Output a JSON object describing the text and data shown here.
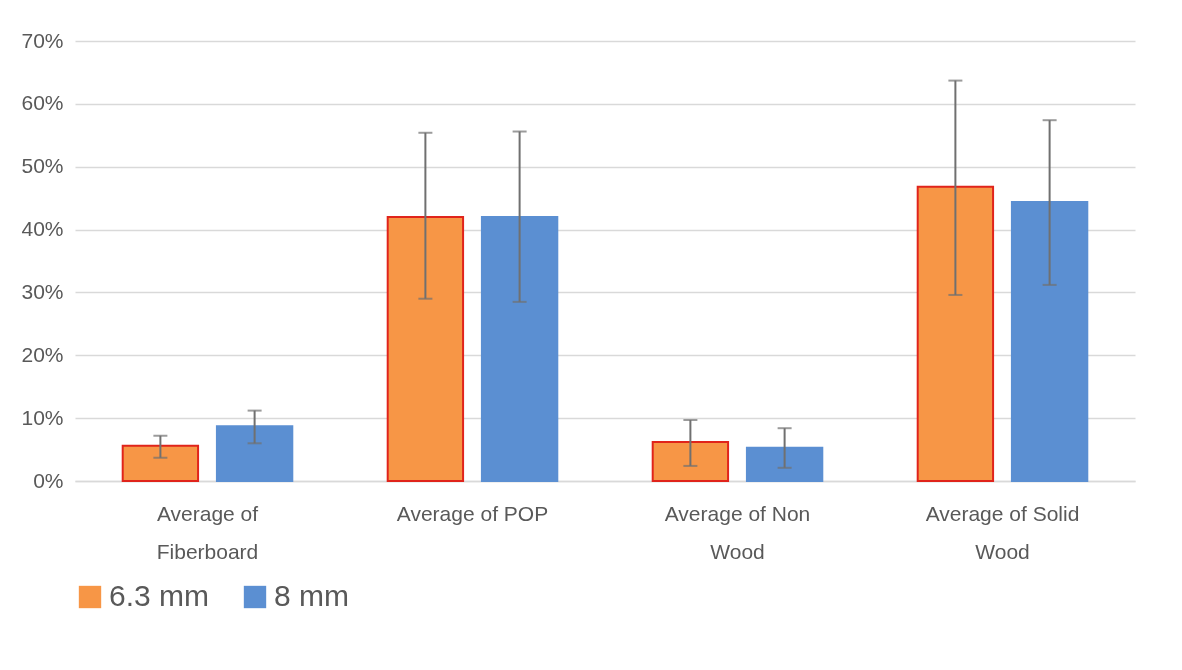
{
  "chart_data": {
    "type": "bar",
    "categories": [
      "Average of Fiberboard",
      "Average of POP",
      "Average of Non Wood",
      "Average of Solid Wood"
    ],
    "series": [
      {
        "name": "6.3 mm",
        "color": "#f79646",
        "values": [
          5.6,
          42.0,
          6.2,
          46.8
        ],
        "errors": [
          [
            3.7,
            7.2
          ],
          [
            29.0,
            55.4
          ],
          [
            2.4,
            9.7
          ],
          [
            29.6,
            63.7
          ]
        ]
      },
      {
        "name": "8 mm",
        "color": "#5b8fd2",
        "values": [
          8.7,
          42.0,
          5.3,
          44.4
        ],
        "errors": [
          [
            6.0,
            11.2
          ],
          [
            28.5,
            55.6
          ],
          [
            2.1,
            8.4
          ],
          [
            31.2,
            57.4
          ]
        ]
      }
    ],
    "ylim": [
      0,
      70
    ],
    "yticks": [
      {
        "value": 0,
        "label": "0%"
      },
      {
        "value": 10,
        "label": "10%"
      },
      {
        "value": 20,
        "label": "20%"
      },
      {
        "value": 30,
        "label": "30%"
      },
      {
        "value": 40,
        "label": "40%"
      },
      {
        "value": 50,
        "label": "50%"
      },
      {
        "value": 60,
        "label": "60%"
      },
      {
        "value": 70,
        "label": "70%"
      }
    ],
    "grid": "y",
    "legend": "bottom"
  }
}
